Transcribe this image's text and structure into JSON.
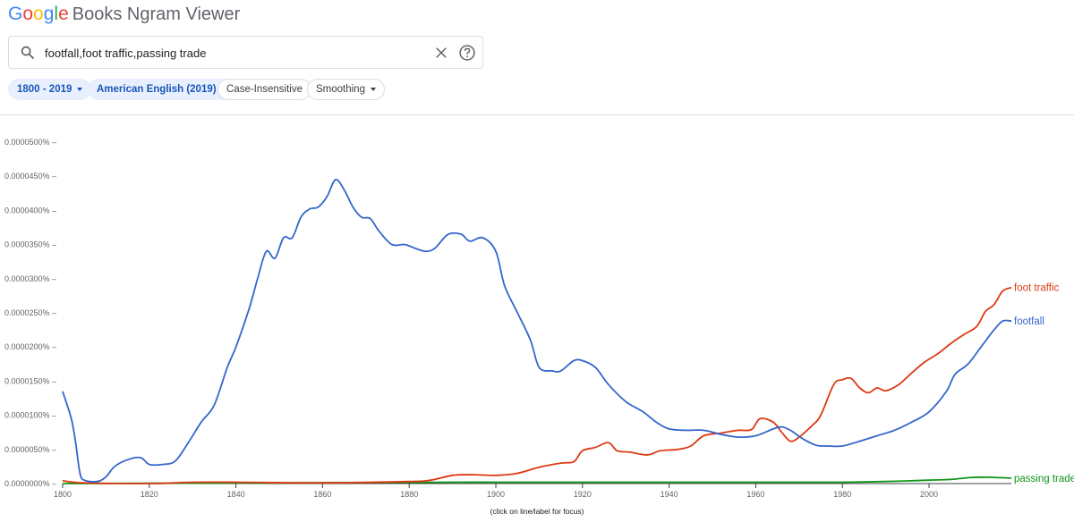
{
  "logo": {
    "letters": [
      "G",
      "o",
      "o",
      "g",
      "l",
      "e"
    ],
    "product": "Books Ngram Viewer"
  },
  "search": {
    "value": "footfall,foot traffic,passing trade",
    "icon": "search-icon",
    "clear_icon": "close-icon",
    "help_icon": "help-icon"
  },
  "chips": [
    {
      "label": "1800 - 2019",
      "style": "blue",
      "dropdown": true
    },
    {
      "label": "American English (2019)",
      "style": "blue",
      "dropdown": true
    },
    {
      "label": "Case-Insensitive",
      "style": "plain",
      "dropdown": false
    },
    {
      "label": "Smoothing",
      "style": "plain",
      "dropdown": true
    }
  ],
  "chart_data": {
    "type": "line",
    "xlim": [
      1800,
      2019
    ],
    "ylim": [
      0,
      5e-07
    ],
    "x_ticks": [
      1800,
      1820,
      1840,
      1860,
      1880,
      1900,
      1920,
      1940,
      1960,
      1980,
      2000
    ],
    "x_tick_labels": [
      "1800",
      "1820",
      "1840",
      "1860",
      "1880",
      "1900",
      "1920",
      "1940",
      "1960",
      "1980",
      "2000"
    ],
    "y_ticks": [
      0,
      5e-08,
      1e-07,
      1.5e-07,
      2e-07,
      2.5e-07,
      3e-07,
      3.5e-07,
      4e-07,
      4.5e-07,
      5e-07
    ],
    "y_tick_labels": [
      "0.0000000%",
      "0.0000050%",
      "0.0000100%",
      "0.0000150%",
      "0.0000200%",
      "0.0000250%",
      "0.0000300%",
      "0.0000350%",
      "0.0000400%",
      "0.0000450%",
      "0.0000500%"
    ],
    "note": "(click on line/label for focus)",
    "grid": false,
    "series": [
      {
        "name": "footfall",
        "color": "#3366cc",
        "points": [
          [
            1800,
            1.35e-07
          ],
          [
            1802,
            9.5e-08
          ],
          [
            1803,
            6e-08
          ],
          [
            1804,
            1.5e-08
          ],
          [
            1805,
            5e-09
          ],
          [
            1808,
            3e-09
          ],
          [
            1810,
            1e-08
          ],
          [
            1812,
            2.5e-08
          ],
          [
            1815,
            3.5e-08
          ],
          [
            1818,
            3.8e-08
          ],
          [
            1820,
            2.8e-08
          ],
          [
            1823,
            2.8e-08
          ],
          [
            1826,
            3.3e-08
          ],
          [
            1829,
            6e-08
          ],
          [
            1832,
            9e-08
          ],
          [
            1835,
            1.15e-07
          ],
          [
            1838,
            1.7e-07
          ],
          [
            1840,
            2e-07
          ],
          [
            1843,
            2.55e-07
          ],
          [
            1845,
            3e-07
          ],
          [
            1847,
            3.4e-07
          ],
          [
            1849,
            3.3e-07
          ],
          [
            1851,
            3.6e-07
          ],
          [
            1853,
            3.6e-07
          ],
          [
            1855,
            3.9e-07
          ],
          [
            1857,
            4.02e-07
          ],
          [
            1859,
            4.05e-07
          ],
          [
            1861,
            4.2e-07
          ],
          [
            1863,
            4.45e-07
          ],
          [
            1865,
            4.3e-07
          ],
          [
            1867,
            4.05e-07
          ],
          [
            1869,
            3.9e-07
          ],
          [
            1871,
            3.88e-07
          ],
          [
            1873,
            3.7e-07
          ],
          [
            1876,
            3.5e-07
          ],
          [
            1879,
            3.5e-07
          ],
          [
            1882,
            3.43e-07
          ],
          [
            1884,
            3.4e-07
          ],
          [
            1886,
            3.45e-07
          ],
          [
            1889,
            3.65e-07
          ],
          [
            1892,
            3.65e-07
          ],
          [
            1894,
            3.55e-07
          ],
          [
            1897,
            3.6e-07
          ],
          [
            1900,
            3.4e-07
          ],
          [
            1902,
            2.9e-07
          ],
          [
            1905,
            2.5e-07
          ],
          [
            1908,
            2.1e-07
          ],
          [
            1910,
            1.7e-07
          ],
          [
            1913,
            1.65e-07
          ],
          [
            1915,
            1.65e-07
          ],
          [
            1918,
            1.8e-07
          ],
          [
            1920,
            1.8e-07
          ],
          [
            1923,
            1.7e-07
          ],
          [
            1926,
            1.45e-07
          ],
          [
            1930,
            1.2e-07
          ],
          [
            1934,
            1.05e-07
          ],
          [
            1937,
            9e-08
          ],
          [
            1940,
            8e-08
          ],
          [
            1944,
            7.8e-08
          ],
          [
            1948,
            7.8e-08
          ],
          [
            1952,
            7.2e-08
          ],
          [
            1956,
            6.8e-08
          ],
          [
            1960,
            7e-08
          ],
          [
            1964,
            8e-08
          ],
          [
            1966,
            8.3e-08
          ],
          [
            1968,
            7.8e-08
          ],
          [
            1971,
            6.5e-08
          ],
          [
            1974,
            5.6e-08
          ],
          [
            1977,
            5.5e-08
          ],
          [
            1980,
            5.5e-08
          ],
          [
            1984,
            6.2e-08
          ],
          [
            1988,
            7e-08
          ],
          [
            1992,
            7.8e-08
          ],
          [
            1996,
            9e-08
          ],
          [
            2000,
            1.05e-07
          ],
          [
            2004,
            1.35e-07
          ],
          [
            2006,
            1.6e-07
          ],
          [
            2009,
            1.75e-07
          ],
          [
            2012,
            2e-07
          ],
          [
            2015,
            2.25e-07
          ],
          [
            2017,
            2.38e-07
          ],
          [
            2019,
            2.38e-07
          ]
        ]
      },
      {
        "name": "foot traffic",
        "color": "#dc3912",
        "points": [
          [
            1800,
            4e-09
          ],
          [
            1805,
            1e-09
          ],
          [
            1820,
            0
          ],
          [
            1830,
            2e-09
          ],
          [
            1840,
            2e-09
          ],
          [
            1860,
            1e-09
          ],
          [
            1880,
            3e-09
          ],
          [
            1885,
            5e-09
          ],
          [
            1890,
            1.2e-08
          ],
          [
            1895,
            1.3e-08
          ],
          [
            1900,
            1.2e-08
          ],
          [
            1905,
            1.5e-08
          ],
          [
            1910,
            2.4e-08
          ],
          [
            1915,
            3e-08
          ],
          [
            1918,
            3.2e-08
          ],
          [
            1920,
            4.8e-08
          ],
          [
            1923,
            5.3e-08
          ],
          [
            1926,
            6e-08
          ],
          [
            1928,
            4.8e-08
          ],
          [
            1931,
            4.6e-08
          ],
          [
            1935,
            4.2e-08
          ],
          [
            1938,
            4.8e-08
          ],
          [
            1942,
            5e-08
          ],
          [
            1945,
            5.5e-08
          ],
          [
            1948,
            7e-08
          ],
          [
            1952,
            7.4e-08
          ],
          [
            1956,
            7.8e-08
          ],
          [
            1959,
            7.9e-08
          ],
          [
            1961,
            9.5e-08
          ],
          [
            1964,
            9e-08
          ],
          [
            1966,
            7.5e-08
          ],
          [
            1968,
            6.2e-08
          ],
          [
            1970,
            6.8e-08
          ],
          [
            1973,
            8.5e-08
          ],
          [
            1975,
            1e-07
          ],
          [
            1978,
            1.45e-07
          ],
          [
            1980,
            1.52e-07
          ],
          [
            1982,
            1.54e-07
          ],
          [
            1984,
            1.4e-07
          ],
          [
            1986,
            1.33e-07
          ],
          [
            1988,
            1.4e-07
          ],
          [
            1990,
            1.36e-07
          ],
          [
            1993,
            1.45e-07
          ],
          [
            1996,
            1.62e-07
          ],
          [
            1999,
            1.78e-07
          ],
          [
            2002,
            1.9e-07
          ],
          [
            2005,
            2.05e-07
          ],
          [
            2008,
            2.18e-07
          ],
          [
            2011,
            2.3e-07
          ],
          [
            2013,
            2.52e-07
          ],
          [
            2015,
            2.62e-07
          ],
          [
            2017,
            2.82e-07
          ],
          [
            2019,
            2.87e-07
          ]
        ]
      },
      {
        "name": "passing trade",
        "color": "#109618",
        "points": [
          [
            1800,
            0
          ],
          [
            1850,
            1e-09
          ],
          [
            1890,
            2e-09
          ],
          [
            1900,
            2e-09
          ],
          [
            1920,
            2e-09
          ],
          [
            1940,
            2e-09
          ],
          [
            1960,
            2e-09
          ],
          [
            1980,
            2e-09
          ],
          [
            1990,
            3e-09
          ],
          [
            2000,
            5e-09
          ],
          [
            2005,
            6e-09
          ],
          [
            2010,
            9e-09
          ],
          [
            2015,
            9e-09
          ],
          [
            2019,
            8e-09
          ]
        ]
      }
    ]
  }
}
